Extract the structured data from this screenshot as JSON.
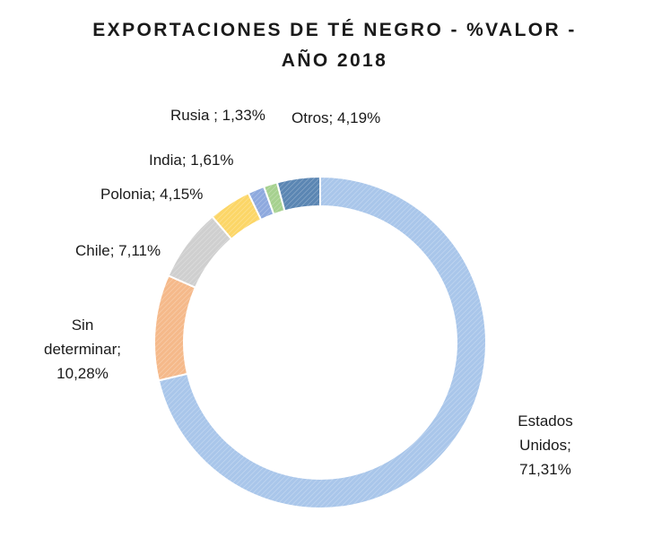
{
  "chart_data": {
    "type": "pie",
    "variant": "donut",
    "title_lines": [
      "EXPORTACIONES  DE TÉ NEGRO - %VALOR -",
      "AÑO 2018"
    ],
    "slices": [
      {
        "label": "Estados Unidos; 71,31%",
        "label_lines": [
          "Estados",
          "Unidos;",
          "71,31%"
        ],
        "value": 71.31,
        "color": "#a9c6ea"
      },
      {
        "label": "Sin determinar; 10,28%",
        "label_lines": [
          "Sin",
          "determinar;",
          "10,28%"
        ],
        "value": 10.28,
        "color": "#f5b98a"
      },
      {
        "label": "Chile; 7,11%",
        "label_lines": [
          "Chile; 7,11%"
        ],
        "value": 7.11,
        "color": "#cfcfcf"
      },
      {
        "label": "Polonia; 4,15%",
        "label_lines": [
          "Polonia; 4,15%"
        ],
        "value": 4.15,
        "color": "#fcd667"
      },
      {
        "label": "India; 1,61%",
        "label_lines": [
          "India; 1,61%"
        ],
        "value": 1.61,
        "color": "#8ea9de"
      },
      {
        "label": "Rusia ; 1,33%",
        "label_lines": [
          "Rusia ; 1,33%"
        ],
        "value": 1.33,
        "color": "#a6d18f"
      },
      {
        "label": "Otros; 4,19%",
        "label_lines": [
          "Otros; 4,19%"
        ],
        "value": 4.19,
        "color": "#5b86b3"
      }
    ],
    "legend": "none"
  }
}
